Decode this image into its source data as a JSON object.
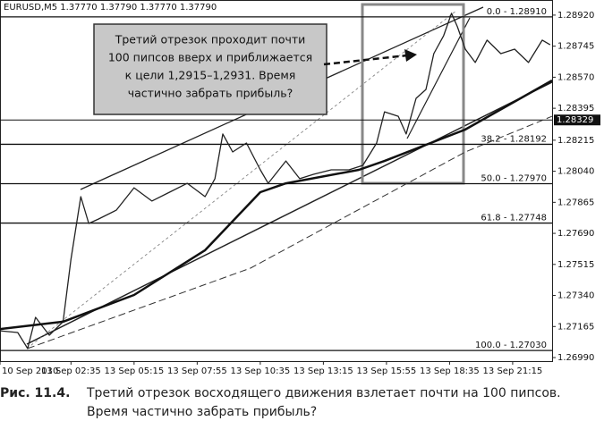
{
  "header": "EURUSD,M5  1.37770 1.37790 1.37770 1.37790",
  "chart_data": {
    "type": "line",
    "xlim": [
      0,
      280
    ],
    "ylim": [
      1.2697,
      1.2898
    ],
    "xticks": [
      {
        "value": 0,
        "label": "10 Sep 2010"
      },
      {
        "value": 36,
        "label": "13 Sep 02:35"
      },
      {
        "value": 68,
        "label": "13 Sep 05:15"
      },
      {
        "value": 100,
        "label": "13 Sep 07:55"
      },
      {
        "value": 132,
        "label": "13 Sep 10:35"
      },
      {
        "value": 164,
        "label": "13 Sep 13:15"
      },
      {
        "value": 196,
        "label": "13 Sep 15:55"
      },
      {
        "value": 228,
        "label": "13 Sep 18:35"
      },
      {
        "value": 260,
        "label": "13 Sep 21:15"
      }
    ],
    "yticks": [
      {
        "value": 1.2892,
        "label": "1.28920"
      },
      {
        "value": 1.28745,
        "label": "1.28745"
      },
      {
        "value": 1.2857,
        "label": "1.28570"
      },
      {
        "value": 1.28395,
        "label": "1.28395"
      },
      {
        "value": 1.28215,
        "label": "1.28215"
      },
      {
        "value": 1.2804,
        "label": "1.28040"
      },
      {
        "value": 1.27865,
        "label": "1.27865"
      },
      {
        "value": 1.2769,
        "label": "1.27690"
      },
      {
        "value": 1.27515,
        "label": "1.27515"
      },
      {
        "value": 1.2734,
        "label": "1.27340"
      },
      {
        "value": 1.27165,
        "label": "1.27165"
      },
      {
        "value": 1.2699,
        "label": "1.26990"
      }
    ],
    "current_price": {
      "value": 1.28329,
      "label": "1.28329"
    },
    "fib_levels": [
      {
        "value": 1.2891,
        "label": "0.0 - 1.28910"
      },
      {
        "value": 1.28192,
        "label": "38.2 - 1.28192"
      },
      {
        "value": 1.2797,
        "label": "50.0 - 1.27970"
      },
      {
        "value": 1.27748,
        "label": "61.8 - 1.27748"
      },
      {
        "value": 1.2703,
        "label": "100.0 - 1.27030"
      }
    ],
    "series": [
      {
        "color": "#222222",
        "width": 1.3,
        "dash": "none",
        "x": [
          0,
          9,
          14,
          18,
          25,
          32,
          36,
          41,
          45,
          50,
          59,
          68,
          77,
          86,
          95,
          104,
          109,
          113,
          118,
          125,
          132,
          136,
          145,
          152,
          159,
          168,
          177,
          184,
          191,
          195,
          202,
          206,
          211,
          216,
          220,
          225,
          229,
          232,
          236,
          241,
          247,
          254,
          261,
          268,
          275,
          279
        ],
        "values": [
          1.27141,
          1.27131,
          1.27041,
          1.27217,
          1.27116,
          1.27192,
          1.27544,
          1.27897,
          1.27746,
          1.27771,
          1.27821,
          1.27947,
          1.27872,
          1.27922,
          1.27972,
          1.27897,
          1.27998,
          1.2825,
          1.28149,
          1.28199,
          1.28048,
          1.27972,
          1.28098,
          1.27998,
          1.28023,
          1.28048,
          1.28048,
          1.28073,
          1.28199,
          1.28375,
          1.2835,
          1.2825,
          1.28451,
          1.28501,
          1.28703,
          1.28804,
          1.2893,
          1.28854,
          1.28728,
          1.28653,
          1.28779,
          1.28703,
          1.28728,
          1.28653,
          1.28779,
          1.28753
        ]
      },
      {
        "color": "#111111",
        "width": 2.5,
        "dash": "none",
        "x": [
          0,
          32,
          68,
          104,
          132,
          145,
          182,
          195,
          236,
          280
        ],
        "values": [
          1.27151,
          1.27192,
          1.27343,
          1.27595,
          1.27922,
          1.27972,
          1.28048,
          1.28098,
          1.28275,
          1.28552
        ]
      },
      {
        "color": "#333333",
        "width": 1,
        "dash": "8 4",
        "x": [
          14,
          127,
          236,
          280
        ],
        "values": [
          1.27041,
          1.27494,
          1.28149,
          1.2835
        ]
      }
    ]
  },
  "annotation": {
    "lines": [
      "Третий отрезок проходит почти",
      "100 пипсов вверх и приближается",
      "к цели 1,2915–1,2931. Время",
      "частично забрать прибыль?"
    ]
  },
  "caption": {
    "label": "Рис. 11.4.",
    "lines": [
      "Третий отрезок восходящего движения взлетает почти на 100 пипсов.",
      "Время частично забрать прибыль?"
    ]
  }
}
